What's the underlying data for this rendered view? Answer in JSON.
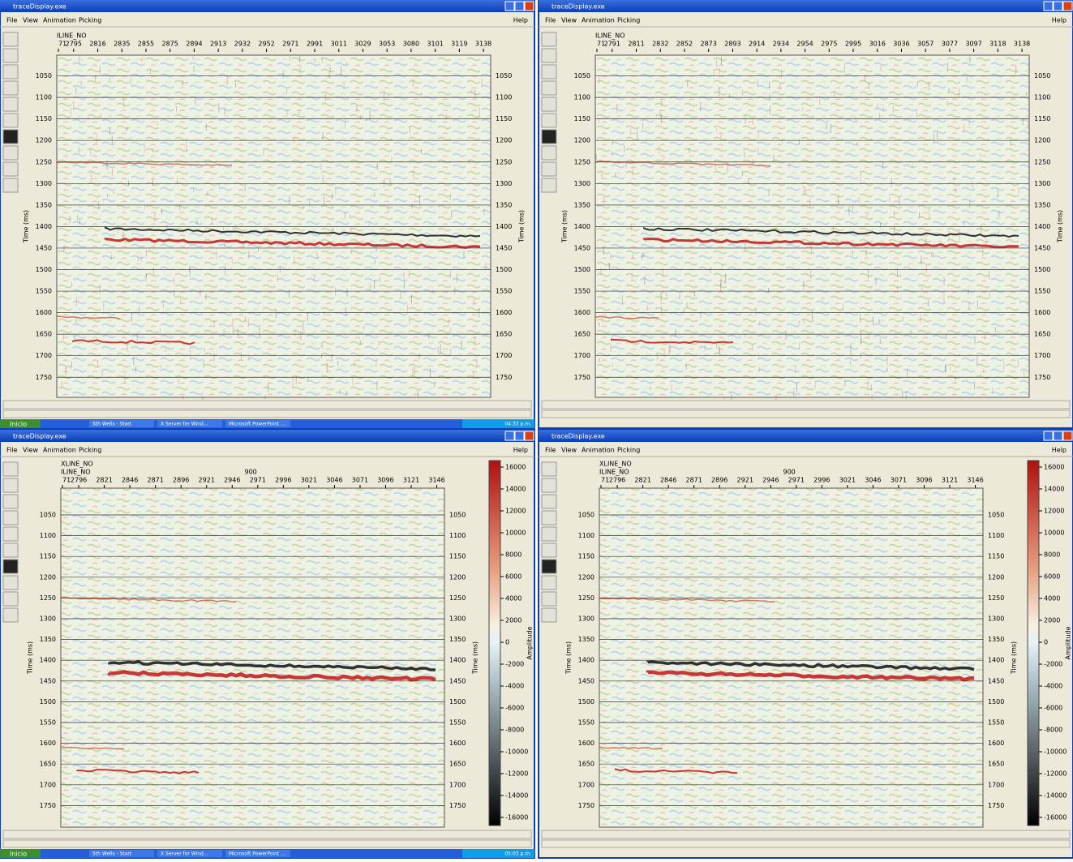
{
  "app_title": "traceDisplay.exe",
  "menu": [
    "File",
    "View",
    "Animation",
    "Picking"
  ],
  "help": "Help",
  "time_axis": {
    "label": "Time (ms)",
    "ticks": [
      1050,
      1100,
      1150,
      1200,
      1250,
      1300,
      1350,
      1400,
      1450,
      1500,
      1550,
      1600,
      1650,
      1700,
      1750
    ]
  },
  "colorbar": {
    "label": "Amplitude",
    "ticks": [
      16000,
      14000,
      12000,
      10000,
      8000,
      6000,
      4000,
      2000,
      0,
      -2000,
      -4000,
      -6000,
      -8000,
      -10000,
      -12000,
      -14000,
      -16000
    ]
  },
  "windows": [
    {
      "iline_label": "ILINE_NO",
      "iline_ticks": [
        "71",
        "2795",
        "2816",
        "2835",
        "2855",
        "2875",
        "2894",
        "2913",
        "2932",
        "2952",
        "2971",
        "2991",
        "3011",
        "3029",
        "3053",
        "3080",
        "3101",
        "3119",
        "3138"
      ],
      "taskbar": {
        "start": "Inicio",
        "items": [
          "5th Wells - Start",
          "X Server for Wind...",
          "Microsoft PowerPoint ..."
        ],
        "clock": "04:33 p.m."
      }
    },
    {
      "iline_label": "ILINE_NO",
      "iline_ticks": [
        "71",
        "2791",
        "2811",
        "2832",
        "2852",
        "2873",
        "2893",
        "2914",
        "2934",
        "2954",
        "2975",
        "2995",
        "3016",
        "3036",
        "3057",
        "3077",
        "3097",
        "3118",
        "3138"
      ]
    },
    {
      "xline_label": "XLINE_NO",
      "xline_value": "900",
      "iline_label": "ILINE_NO",
      "iline_ticks": [
        "71",
        "2796",
        "2821",
        "2846",
        "2871",
        "2896",
        "2921",
        "2946",
        "2971",
        "2996",
        "3021",
        "3046",
        "3071",
        "3096",
        "3121",
        "3146"
      ],
      "taskbar": {
        "start": "Inicio",
        "items": [
          "5th Wells - Start",
          "X Server for Wind...",
          "Microsoft PowerPoint ..."
        ],
        "clock": "05:03 p.m."
      }
    },
    {
      "xline_label": "XLINE_NO",
      "xline_value": "900",
      "iline_label": "ILINE_NO",
      "iline_ticks": [
        "71",
        "2796",
        "2821",
        "2846",
        "2871",
        "2896",
        "2921",
        "2946",
        "2971",
        "2996",
        "3021",
        "3046",
        "3071",
        "3096",
        "3121",
        "3146"
      ]
    }
  ]
}
